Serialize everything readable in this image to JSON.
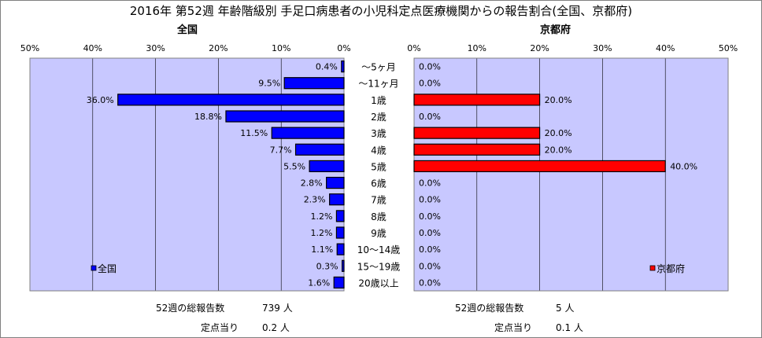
{
  "title": "2016年 第52週 年齢階級別 手足口病患者の小児科定点医療機関からの報告割合(全国、京都府)",
  "colors": {
    "plot_bg": "#c8c8ff",
    "national_fill": "#0000ff",
    "kyoto_fill": "#ff0000",
    "bar_stroke": "#000000",
    "grid": "#000000"
  },
  "chart_data": [
    {
      "type": "bar",
      "orientation": "horizontal",
      "direction": "right-to-left",
      "panel_label": "全国",
      "legend": "全国",
      "legend_position": "bottom-left",
      "categories": [
        "〜5ヶ月",
        "〜11ヶ月",
        "1歳",
        "2歳",
        "3歳",
        "4歳",
        "5歳",
        "6歳",
        "7歳",
        "8歳",
        "9歳",
        "10〜14歳",
        "15〜19歳",
        "20歳以上"
      ],
      "values": [
        0.4,
        9.5,
        36.0,
        18.8,
        11.5,
        7.7,
        5.5,
        2.8,
        2.3,
        1.2,
        1.2,
        1.1,
        0.3,
        1.6
      ],
      "value_labels": [
        "0.4%",
        "9.5%",
        "36.0%",
        "18.8%",
        "11.5%",
        "7.7%",
        "5.5%",
        "2.8%",
        "2.3%",
        "1.2%",
        "1.2%",
        "1.1%",
        "0.3%",
        "1.6%"
      ],
      "xlim": [
        0,
        50
      ],
      "ticks": [
        0,
        10,
        20,
        30,
        40,
        50
      ],
      "tick_labels": [
        "0%",
        "10%",
        "20%",
        "30%",
        "40%",
        "50%"
      ],
      "grid": true
    },
    {
      "type": "bar",
      "orientation": "horizontal",
      "direction": "left-to-right",
      "panel_label": "京都府",
      "legend": "京都府",
      "legend_position": "bottom-right",
      "categories": [
        "〜5ヶ月",
        "〜11ヶ月",
        "1歳",
        "2歳",
        "3歳",
        "4歳",
        "5歳",
        "6歳",
        "7歳",
        "8歳",
        "9歳",
        "10〜14歳",
        "15〜19歳",
        "20歳以上"
      ],
      "values": [
        0.0,
        0.0,
        20.0,
        0.0,
        20.0,
        20.0,
        40.0,
        0.0,
        0.0,
        0.0,
        0.0,
        0.0,
        0.0,
        0.0
      ],
      "value_labels": [
        "0.0%",
        "0.0%",
        "20.0%",
        "0.0%",
        "20.0%",
        "20.0%",
        "40.0%",
        "0.0%",
        "0.0%",
        "0.0%",
        "0.0%",
        "0.0%",
        "0.0%",
        "0.0%"
      ],
      "xlim": [
        0,
        50
      ],
      "ticks": [
        0,
        10,
        20,
        30,
        40,
        50
      ],
      "tick_labels": [
        "0%",
        "10%",
        "20%",
        "30%",
        "40%",
        "50%"
      ],
      "grid": true
    }
  ],
  "footer": {
    "national": {
      "total_label": "52週の総報告数",
      "total_value": "739 人",
      "per_label": "定点当り",
      "per_value": "0.2 人"
    },
    "kyoto": {
      "total_label": "52週の総報告数",
      "total_value": "5 人",
      "per_label": "定点当り",
      "per_value": "0.1 人"
    }
  }
}
